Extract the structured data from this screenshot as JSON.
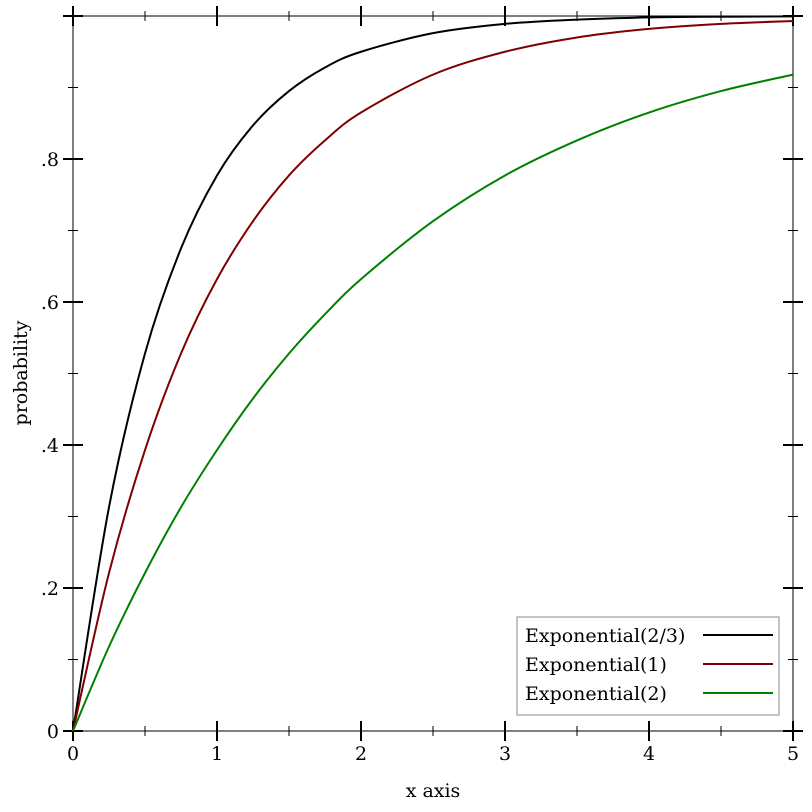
{
  "chart_data": {
    "type": "line",
    "title": "",
    "xlabel": "x axis",
    "ylabel": "probability",
    "xlim": [
      0,
      5
    ],
    "ylim": [
      0,
      1
    ],
    "grid": false,
    "legend_position": "bottom-right",
    "x_ticks": [
      {
        "value": 0,
        "label": "0"
      },
      {
        "value": 1,
        "label": "1"
      },
      {
        "value": 2,
        "label": "2"
      },
      {
        "value": 3,
        "label": "3"
      },
      {
        "value": 4,
        "label": "4"
      },
      {
        "value": 5,
        "label": "5"
      }
    ],
    "x_minor_ticks": [
      0.5,
      1.5,
      2.5,
      3.5,
      4.5
    ],
    "y_ticks": [
      {
        "value": 0,
        "label": "0"
      },
      {
        "value": 0.2,
        "label": ".2"
      },
      {
        "value": 0.4,
        "label": ".4"
      },
      {
        "value": 0.6,
        "label": ".6"
      },
      {
        "value": 0.8,
        "label": ".8"
      },
      {
        "value": 1.0,
        "label": ""
      }
    ],
    "y_minor_ticks": [
      0.1,
      0.3,
      0.5,
      0.7,
      0.9
    ],
    "series": [
      {
        "name": "Exponential(2/3)",
        "color": "#000000",
        "x": [
          0,
          0.25,
          0.5,
          0.75,
          1,
          1.25,
          1.5,
          1.75,
          2,
          2.5,
          3,
          3.5,
          4,
          4.5,
          5
        ],
        "y": [
          0,
          0.313,
          0.528,
          0.675,
          0.777,
          0.847,
          0.895,
          0.928,
          0.95,
          0.976,
          0.989,
          0.995,
          0.998,
          0.999,
          0.9994
        ]
      },
      {
        "name": "Exponential(1)",
        "color": "#7f0000",
        "x": [
          0,
          0.25,
          0.5,
          0.75,
          1,
          1.25,
          1.5,
          1.75,
          2,
          2.5,
          3,
          3.5,
          4,
          4.5,
          5
        ],
        "y": [
          0,
          0.221,
          0.393,
          0.528,
          0.632,
          0.713,
          0.777,
          0.826,
          0.865,
          0.918,
          0.95,
          0.97,
          0.982,
          0.989,
          0.993
        ]
      },
      {
        "name": "Exponential(2)",
        "color": "#008000",
        "x": [
          0,
          0.25,
          0.5,
          0.75,
          1,
          1.25,
          1.5,
          1.75,
          2,
          2.5,
          3,
          3.5,
          4,
          4.5,
          5
        ],
        "y": [
          0,
          0.118,
          0.221,
          0.313,
          0.393,
          0.465,
          0.528,
          0.583,
          0.632,
          0.713,
          0.777,
          0.826,
          0.865,
          0.895,
          0.918
        ]
      }
    ]
  }
}
